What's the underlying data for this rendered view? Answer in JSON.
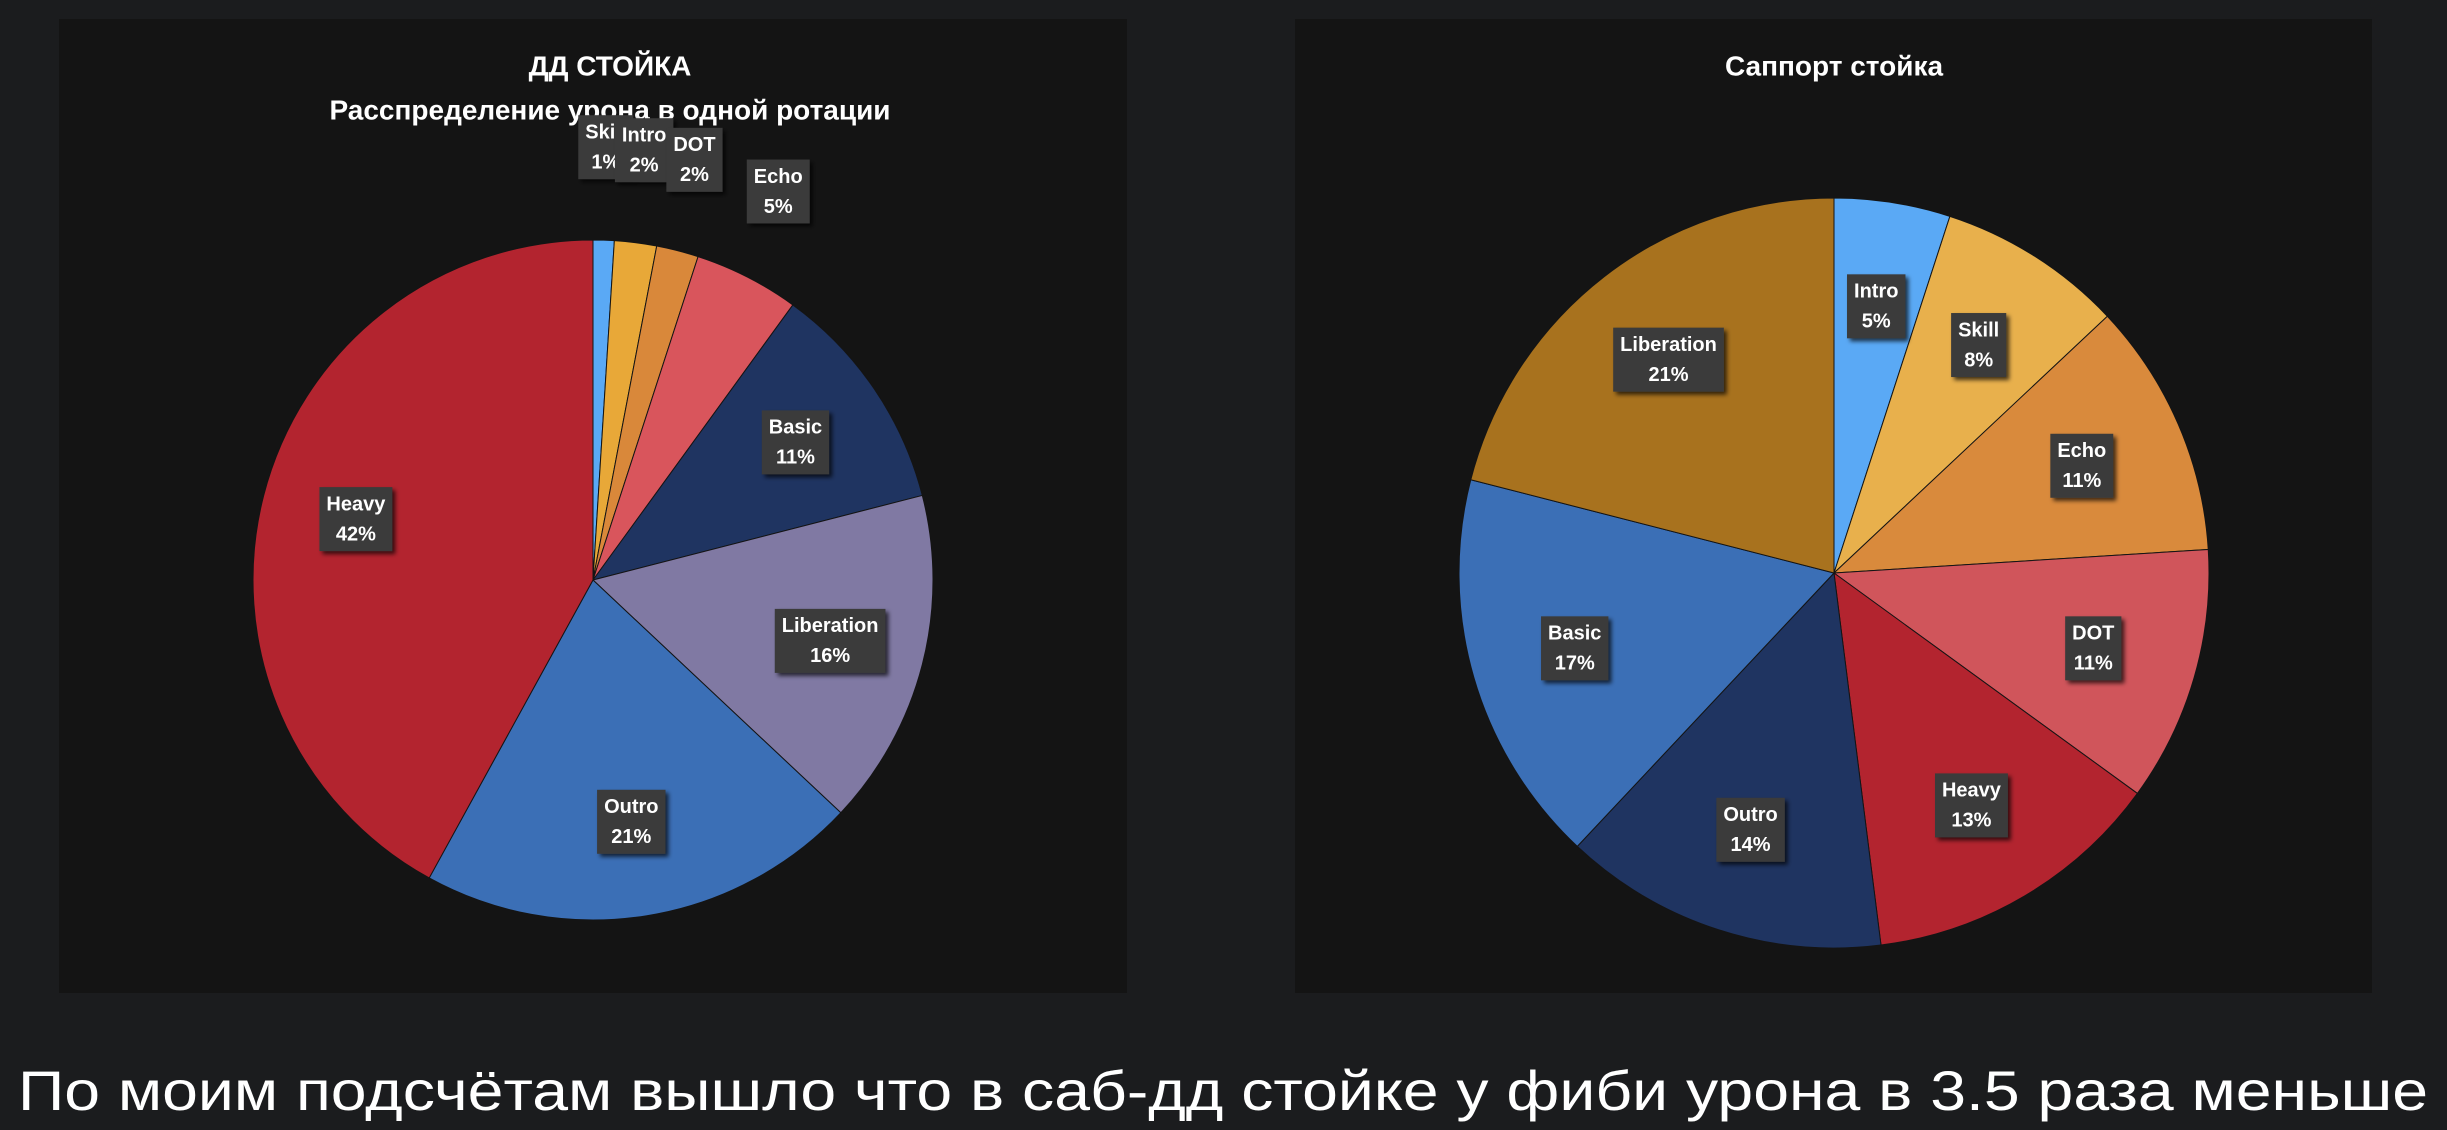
{
  "chart_data": [
    {
      "type": "pie",
      "title": "ДД  СТОЙКА",
      "subtitle": "Расспределение урона в одной ротации",
      "categories": [
        "Skill",
        "Intro",
        "DOT",
        "Echo",
        "Basic",
        "Liberation",
        "Outro",
        "Heavy"
      ],
      "values": [
        1,
        2,
        2,
        5,
        11,
        16,
        21,
        42
      ],
      "value_labels": [
        "1%",
        "2%",
        "2%",
        "5%",
        "11%",
        "16%",
        "21%",
        "42%"
      ],
      "colors": [
        "#5aa9f5",
        "#e8a838",
        "#d9883a",
        "#d9555c",
        "#1f3461",
        "#8079a3",
        "#3b6fb6",
        "#b3242f"
      ]
    },
    {
      "type": "pie",
      "title": "Саппорт стойка",
      "categories": [
        "Intro",
        "Skill",
        "Echo",
        "DOT",
        "Heavy",
        "Outro",
        "Basic",
        "Liberation"
      ],
      "values": [
        5,
        8,
        11,
        11,
        13,
        14,
        17,
        21
      ],
      "value_labels": [
        "5%",
        "8%",
        "11%",
        "11%",
        "13%",
        "14%",
        "17%",
        "21%"
      ],
      "colors": [
        "#5aa9f5",
        "#e8b04c",
        "#d98a3c",
        "#d0555b",
        "#b3242f",
        "#1f3461",
        "#3b6fb6",
        "#a8721e"
      ]
    }
  ],
  "caption": "По моим подсчётам вышло что в саб-дд стойке у фиби урона в 3.5 раза меньше"
}
